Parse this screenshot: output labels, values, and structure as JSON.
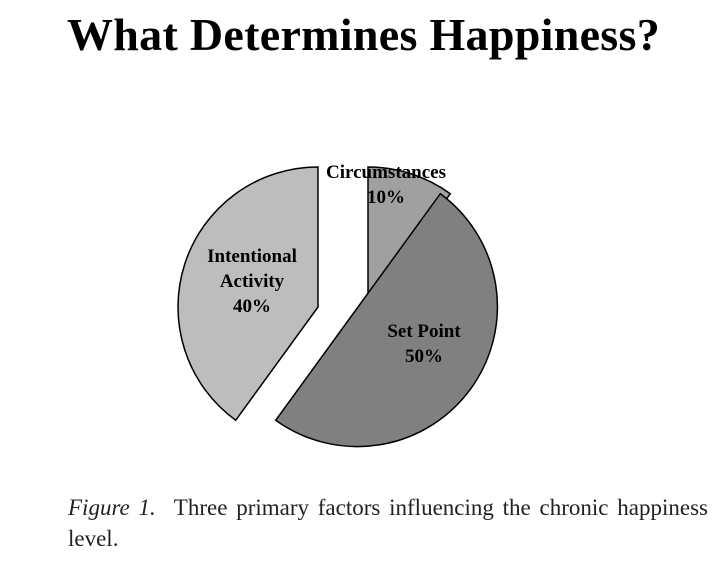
{
  "title": "What Determines Happiness?",
  "caption": {
    "label": "Figure 1.",
    "text": "Three primary factors influencing the chronic happiness level."
  },
  "colors": {
    "circumstances": "#a0a0a0",
    "set_point": "#808080",
    "intentional_activity": "#bdbdbd",
    "outline": "#000000"
  },
  "chart_data": {
    "type": "pie",
    "title": "What Determines Happiness?",
    "exploded": true,
    "slices": [
      {
        "id": "circumstances",
        "label": "Circumstances",
        "percent_label": "10%",
        "value": 10
      },
      {
        "id": "set_point",
        "label": "Set Point",
        "percent_label": "50%",
        "value": 50
      },
      {
        "id": "intentional_activity",
        "label": "Intentional Activity",
        "percent_label": "40%",
        "value": 40
      }
    ]
  }
}
